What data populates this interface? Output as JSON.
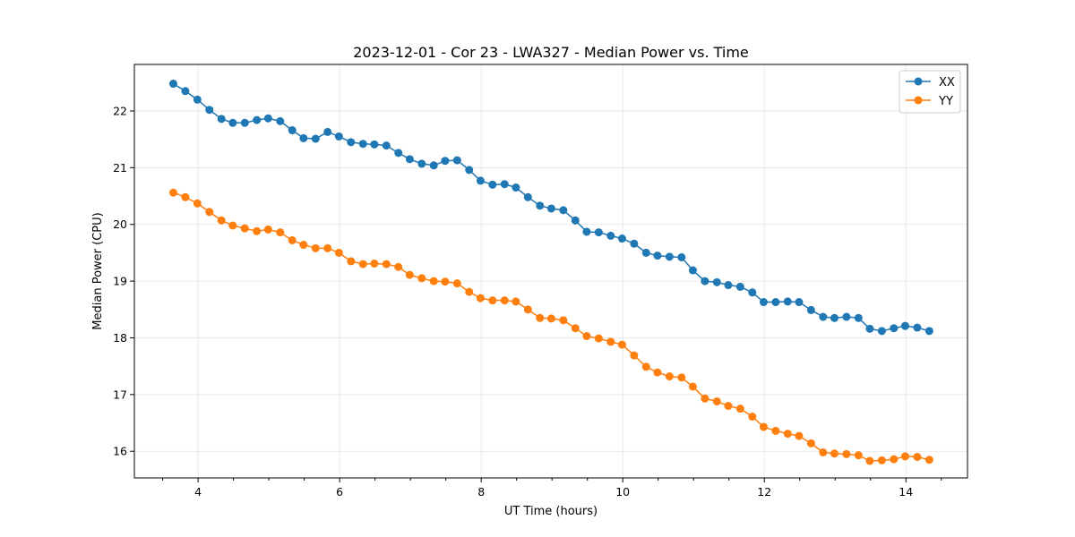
{
  "chart_data": {
    "type": "line",
    "title": "2023-12-01 - Cor 23 - LWA327 - Median Power vs. Time",
    "xlabel": "UT Time (hours)",
    "ylabel": "Median Power (CPU)",
    "xlim": [
      3.1,
      14.87
    ],
    "ylim": [
      15.53,
      22.82
    ],
    "x_ticks": [
      4,
      6,
      8,
      10,
      12,
      14
    ],
    "x_tick_labels": [
      "4",
      "6",
      "8",
      "10",
      "12",
      "14"
    ],
    "x_minor_ticks": [
      3.5,
      4.5,
      5.0,
      5.5,
      6.5,
      7.0,
      7.5,
      8.5,
      9.0,
      9.5,
      10.5,
      11.0,
      11.5,
      12.5,
      13.0,
      13.5,
      14.5
    ],
    "y_ticks": [
      16,
      17,
      18,
      19,
      20,
      21,
      22
    ],
    "y_tick_labels": [
      "16",
      "17",
      "18",
      "19",
      "20",
      "21",
      "22"
    ],
    "grid": true,
    "legend_position": "top-right",
    "x": [
      3.65,
      3.82,
      3.99,
      4.16,
      4.33,
      4.49,
      4.66,
      4.83,
      4.99,
      5.16,
      5.33,
      5.49,
      5.66,
      5.83,
      5.99,
      6.16,
      6.33,
      6.49,
      6.66,
      6.83,
      6.99,
      7.16,
      7.33,
      7.49,
      7.66,
      7.83,
      7.99,
      8.16,
      8.33,
      8.49,
      8.66,
      8.83,
      8.99,
      9.16,
      9.33,
      9.49,
      9.66,
      9.83,
      9.99,
      10.16,
      10.33,
      10.49,
      10.66,
      10.83,
      10.99,
      11.16,
      11.33,
      11.49,
      11.66,
      11.83,
      11.99,
      12.16,
      12.33,
      12.49,
      12.66,
      12.83,
      12.99,
      13.16,
      13.33,
      13.49,
      13.66,
      13.83,
      13.99,
      14.16,
      14.33
    ],
    "series": [
      {
        "name": "XX",
        "color": "#1f77b4",
        "values": [
          22.48,
          22.35,
          22.2,
          22.02,
          21.86,
          21.79,
          21.79,
          21.84,
          21.87,
          21.82,
          21.66,
          21.52,
          21.51,
          21.63,
          21.55,
          21.45,
          21.42,
          21.41,
          21.39,
          21.26,
          21.15,
          21.07,
          21.04,
          21.12,
          21.13,
          20.96,
          20.77,
          20.7,
          20.71,
          20.65,
          20.48,
          20.33,
          20.28,
          20.25,
          20.07,
          19.87,
          19.86,
          19.8,
          19.75,
          19.66,
          19.5,
          19.45,
          19.43,
          19.42,
          19.19,
          19.0,
          18.98,
          18.93,
          18.9,
          18.8,
          18.63,
          18.63,
          18.64,
          18.63,
          18.49,
          18.37,
          18.35,
          18.37,
          18.35,
          18.16,
          18.12,
          18.17,
          18.21,
          18.18,
          18.12
        ]
      },
      {
        "name": "YY",
        "color": "#ff7f0e",
        "values": [
          20.56,
          20.48,
          20.37,
          20.22,
          20.07,
          19.98,
          19.93,
          19.88,
          19.91,
          19.86,
          19.72,
          19.64,
          19.58,
          19.58,
          19.5,
          19.35,
          19.3,
          19.31,
          19.3,
          19.25,
          19.11,
          19.05,
          19.0,
          18.99,
          18.96,
          18.81,
          18.7,
          18.66,
          18.66,
          18.64,
          18.5,
          18.35,
          18.34,
          18.31,
          18.17,
          18.03,
          17.99,
          17.93,
          17.88,
          17.69,
          17.49,
          17.39,
          17.32,
          17.3,
          17.14,
          16.93,
          16.88,
          16.8,
          16.75,
          16.61,
          16.43,
          16.36,
          16.31,
          16.27,
          16.14,
          15.98,
          15.96,
          15.95,
          15.93,
          15.83,
          15.84,
          15.86,
          15.91,
          15.9,
          15.85
        ]
      }
    ]
  }
}
